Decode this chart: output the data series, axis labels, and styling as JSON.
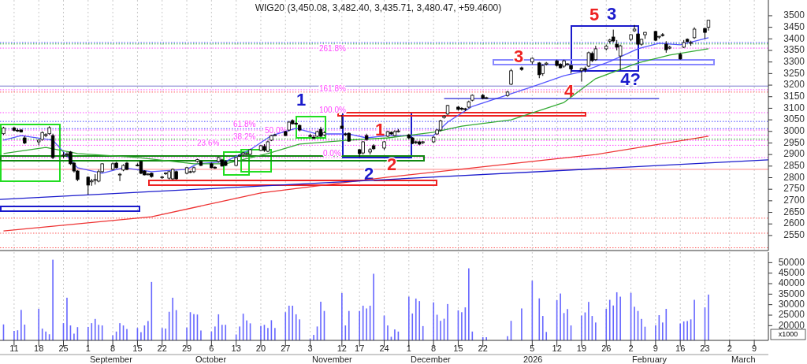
{
  "chart_data": [
    {
      "type": "candlestick",
      "title": "WIG20 (3,450.08, 3,482.40, 3,435.71, 3,480.47, +59.4600)",
      "color": "#000000",
      "x": [
        "2025-08-08",
        "2025-08-11",
        "2025-08-12",
        "2025-08-13",
        "2025-08-14",
        "2025-08-18",
        "2025-08-19",
        "2025-08-20",
        "2025-08-21",
        "2025-08-22",
        "2025-08-25",
        "2025-08-26",
        "2025-08-27",
        "2025-08-28",
        "2025-08-29",
        "2025-09-01",
        "2025-09-02",
        "2025-09-03",
        "2025-09-04",
        "2025-09-05",
        "2025-09-08",
        "2025-09-09",
        "2025-09-10",
        "2025-09-11",
        "2025-09-12",
        "2025-09-15",
        "2025-09-16",
        "2025-09-17",
        "2025-09-18",
        "2025-09-19",
        "2025-09-22",
        "2025-09-23",
        "2025-09-24",
        "2025-09-25",
        "2025-09-26",
        "2025-09-29",
        "2025-09-30",
        "2025-10-01",
        "2025-10-02",
        "2025-10-03",
        "2025-10-06",
        "2025-10-07",
        "2025-10-08",
        "2025-10-09",
        "2025-10-10",
        "2025-10-13",
        "2025-10-14",
        "2025-10-15",
        "2025-10-16",
        "2025-10-17",
        "2025-10-20",
        "2025-10-21",
        "2025-10-22",
        "2025-10-23",
        "2025-10-24",
        "2025-10-27",
        "2025-10-28",
        "2025-10-29",
        "2025-10-30",
        "2025-10-31",
        "2025-11-03",
        "2025-11-04",
        "2025-11-05",
        "2025-11-06",
        "2025-11-07",
        "2025-11-12",
        "2025-11-13",
        "2025-11-14",
        "2025-11-17",
        "2025-11-18",
        "2025-11-19",
        "2025-11-20",
        "2025-11-21",
        "2025-11-24",
        "2025-11-25",
        "2025-11-26",
        "2025-11-27",
        "2025-11-28",
        "2025-12-01",
        "2025-12-02",
        "2025-12-03",
        "2025-12-04",
        "2025-12-05",
        "2025-12-08",
        "2025-12-09",
        "2025-12-10",
        "2025-12-11",
        "2025-12-12",
        "2025-12-15",
        "2025-12-16",
        "2025-12-17",
        "2025-12-18",
        "2025-12-19",
        "2025-12-22",
        "2025-12-23",
        "2025-12-29",
        "2025-12-30",
        "2026-01-02",
        "2026-01-05",
        "2026-01-07",
        "2026-01-08",
        "2026-01-09",
        "2026-01-12",
        "2026-01-13",
        "2026-01-14",
        "2026-01-15",
        "2026-01-16",
        "2026-01-19",
        "2026-01-20",
        "2026-01-21",
        "2026-01-22",
        "2026-01-23",
        "2026-01-26",
        "2026-01-27",
        "2026-01-28",
        "2026-01-29",
        "2026-01-30",
        "2026-02-02",
        "2026-02-03",
        "2026-02-04",
        "2026-02-05",
        "2026-02-06",
        "2026-02-09",
        "2026-02-10",
        "2026-02-11",
        "2026-02-12",
        "2026-02-13",
        "2026-02-16",
        "2026-02-17",
        "2026-02-18",
        "2026-02-19",
        "2026-02-20",
        "2026-02-23",
        "2026-02-24"
      ],
      "ohlc": [
        [
          2990,
          3020,
          2985,
          3015
        ],
        [
          3015,
          3020,
          3000,
          3005
        ],
        [
          3005,
          3012,
          2998,
          3004
        ],
        [
          3006,
          3010,
          2995,
          2998
        ],
        [
          2972,
          2980,
          2945,
          2950
        ],
        [
          2955,
          2965,
          2940,
          2962
        ],
        [
          2965,
          3000,
          2960,
          2995
        ],
        [
          2985,
          2992,
          2975,
          2986
        ],
        [
          2990,
          3022,
          2985,
          3016
        ],
        [
          2982,
          2990,
          2880,
          2887
        ],
        [
          2895,
          2910,
          2885,
          2898
        ],
        [
          2900,
          2910,
          2890,
          2902
        ],
        [
          2911,
          2915,
          2855,
          2860
        ],
        [
          2863,
          2868,
          2822,
          2829
        ],
        [
          2829,
          2832,
          2785,
          2792
        ],
        [
          2802,
          2806,
          2727,
          2768
        ],
        [
          2782,
          2795,
          2765,
          2786
        ],
        [
          2790,
          2815,
          2770,
          2792
        ],
        [
          2785,
          2835,
          2780,
          2826
        ],
        [
          2826,
          2862,
          2822,
          2860
        ],
        [
          2836,
          2865,
          2832,
          2860
        ],
        [
          2863,
          2868,
          2840,
          2843
        ],
        [
          2812,
          2820,
          2785,
          2815
        ],
        [
          2833,
          2858,
          2828,
          2853
        ],
        [
          2863,
          2868,
          2832,
          2836
        ],
        [
          2855,
          2862,
          2850,
          2853
        ],
        [
          2870,
          2874,
          2815,
          2819
        ],
        [
          2829,
          2832,
          2810,
          2812
        ],
        [
          2815,
          2820,
          2810,
          2816
        ],
        [
          2819,
          2822,
          2800,
          2805
        ],
        [
          2802,
          2808,
          2795,
          2803
        ],
        [
          2818,
          2823,
          2812,
          2820
        ],
        [
          2798,
          2830,
          2792,
          2826
        ],
        [
          2795,
          2840,
          2790,
          2836
        ],
        [
          2826,
          2830,
          2792,
          2795
        ],
        [
          2819,
          2846,
          2815,
          2843
        ],
        [
          2824,
          2830,
          2820,
          2826
        ],
        [
          2826,
          2848,
          2820,
          2843
        ],
        [
          2870,
          2882,
          2865,
          2878
        ],
        [
          2870,
          2875,
          2850,
          2853
        ],
        [
          2860,
          2865,
          2840,
          2843
        ],
        [
          2845,
          2850,
          2838,
          2843
        ],
        [
          2870,
          2890,
          2865,
          2887
        ],
        [
          2877,
          2882,
          2848,
          2850
        ],
        [
          2870,
          2874,
          2850,
          2853
        ],
        [
          2853,
          2890,
          2850,
          2887
        ],
        [
          2895,
          2900,
          2890,
          2897
        ],
        [
          2900,
          2910,
          2895,
          2907
        ],
        [
          2902,
          2908,
          2898,
          2904
        ],
        [
          2901,
          2925,
          2898,
          2921
        ],
        [
          2918,
          2942,
          2915,
          2938
        ],
        [
          2935,
          2945,
          2912,
          2918
        ],
        [
          2914,
          2960,
          2910,
          2955
        ],
        [
          2962,
          2985,
          2958,
          2982
        ],
        [
          2984,
          2990,
          2980,
          2985
        ],
        [
          2999,
          3003,
          2980,
          2982
        ],
        [
          3006,
          3045,
          3000,
          3040
        ],
        [
          3047,
          3052,
          3030,
          3033
        ],
        [
          3035,
          3040,
          3028,
          3033
        ],
        [
          3026,
          3030,
          3000,
          3006
        ],
        [
          2982,
          2990,
          2975,
          2979
        ],
        [
          2975,
          2985,
          2965,
          2972
        ],
        [
          2979,
          3003,
          2975,
          2999
        ],
        [
          3009,
          3020,
          2975,
          2979
        ],
        [
          2985,
          3000,
          2980,
          2995
        ],
        [
          3023,
          3071,
          3010,
          3013
        ],
        [
          2989,
          2995,
          2980,
          2988
        ],
        [
          2992,
          2996,
          2955,
          2958
        ],
        [
          2921,
          2925,
          2890,
          2904
        ],
        [
          2907,
          2958,
          2900,
          2955
        ],
        [
          2982,
          2990,
          2960,
          2965
        ],
        [
          2911,
          2928,
          2900,
          2921
        ],
        [
          2938,
          2945,
          2920,
          2925
        ],
        [
          2928,
          2958,
          2920,
          2955
        ],
        [
          2979,
          3003,
          2975,
          2999
        ],
        [
          2996,
          3000,
          2985,
          2989
        ],
        [
          2982,
          3005,
          2978,
          2999
        ],
        [
          3000,
          3010,
          2995,
          3002
        ],
        [
          2985,
          2990,
          2965,
          2972
        ],
        [
          2972,
          2975,
          2945,
          2948
        ],
        [
          2955,
          2960,
          2945,
          2952
        ],
        [
          2955,
          2960,
          2940,
          2945
        ],
        [
          2952,
          2958,
          2945,
          2955
        ],
        [
          2955,
          2980,
          2950,
          2975
        ],
        [
          2989,
          3010,
          2985,
          3006
        ],
        [
          3006,
          3050,
          3000,
          3045
        ],
        [
          3060,
          3070,
          3055,
          3065
        ],
        [
          3075,
          3115,
          3070,
          3112
        ],
        [
          3105,
          3110,
          3090,
          3095
        ],
        [
          3100,
          3105,
          3090,
          3098
        ],
        [
          3098,
          3102,
          3088,
          3096
        ],
        [
          3105,
          3133,
          3100,
          3128
        ],
        [
          3135,
          3160,
          3130,
          3156
        ],
        [
          3156,
          3162,
          3140,
          3143
        ],
        [
          3145,
          3150,
          3140,
          3146
        ],
        [
          3155,
          3175,
          3150,
          3170
        ],
        [
          3204,
          3270,
          3200,
          3262
        ],
        [
          3275,
          3280,
          3262,
          3268
        ],
        [
          3300,
          3320,
          3290,
          3316
        ],
        [
          3296,
          3300,
          3230,
          3245
        ],
        [
          3250,
          3290,
          3240,
          3285
        ],
        [
          3290,
          3300,
          3285,
          3295
        ],
        [
          3305,
          3310,
          3280,
          3285
        ],
        [
          3290,
          3295,
          3272,
          3275
        ],
        [
          3282,
          3310,
          3275,
          3305
        ],
        [
          3290,
          3295,
          3285,
          3292
        ],
        [
          3285,
          3290,
          3250,
          3270
        ],
        [
          3262,
          3275,
          3215,
          3272
        ],
        [
          3272,
          3280,
          3255,
          3265
        ],
        [
          3282,
          3345,
          3278,
          3340
        ],
        [
          3337,
          3345,
          3300,
          3306
        ],
        [
          3310,
          3370,
          3305,
          3357
        ],
        [
          3357,
          3375,
          3350,
          3368
        ],
        [
          3390,
          3400,
          3380,
          3395
        ],
        [
          3408,
          3440,
          3385,
          3391
        ],
        [
          3377,
          3395,
          3350,
          3364
        ],
        [
          3326,
          3375,
          3265,
          3370
        ],
        [
          3398,
          3420,
          3390,
          3418
        ],
        [
          3435,
          3460,
          3430,
          3442
        ],
        [
          3421,
          3425,
          3370,
          3377
        ],
        [
          3377,
          3400,
          3370,
          3398
        ],
        [
          3418,
          3430,
          3400,
          3428
        ],
        [
          3432,
          3435,
          3390,
          3394
        ],
        [
          3408,
          3412,
          3400,
          3411
        ],
        [
          3418,
          3425,
          3410,
          3415
        ],
        [
          3377,
          3390,
          3340,
          3353
        ],
        [
          3360,
          3370,
          3355,
          3364
        ],
        [
          3333,
          3340,
          3310,
          3313
        ],
        [
          3364,
          3395,
          3360,
          3384
        ],
        [
          3398,
          3402,
          3385,
          3388
        ],
        [
          3381,
          3392,
          3370,
          3384
        ],
        [
          3405,
          3450,
          3400,
          3442
        ],
        [
          3445,
          3448,
          3400,
          3428
        ],
        [
          3450.08,
          3482.4,
          3435.71,
          3480.47
        ]
      ],
      "series": [
        {
          "type": "line",
          "color": "#5555ff",
          "x": [
            "2025-08-08",
            "2025-08-13",
            "2025-08-22",
            "2025-08-29",
            "2025-09-05",
            "2025-09-11",
            "2025-09-19",
            "2025-09-29",
            "2025-10-02",
            "2025-10-10",
            "2025-10-17",
            "2025-10-23",
            "2025-10-30",
            "2025-11-05",
            "2025-11-14",
            "2025-11-19",
            "2025-11-25",
            "2025-12-08",
            "2025-12-12",
            "2025-12-19",
            "2026-01-05",
            "2026-01-14",
            "2026-01-19",
            "2026-01-27",
            "2026-02-04",
            "2026-02-10",
            "2026-02-16",
            "2026-02-24"
          ],
          "values": [
            2962,
            2982,
            2962,
            2843,
            2819,
            2843,
            2826,
            2836,
            2860,
            2870,
            2921,
            2982,
            3013,
            2989,
            2989,
            2972,
            2982,
            2982,
            3040,
            3108,
            3193,
            3241,
            3258,
            3302,
            3357,
            3381,
            3374,
            3405
          ]
        },
        {
          "type": "line",
          "color": "#33aa33",
          "x": [
            "2025-08-08",
            "2025-08-20",
            "2025-08-29",
            "2025-09-15",
            "2025-10-01",
            "2025-10-10",
            "2025-10-22",
            "2025-10-31",
            "2025-11-14",
            "2025-11-25",
            "2025-12-08",
            "2025-12-16",
            "2025-12-30",
            "2026-01-14",
            "2026-01-23",
            "2026-02-04",
            "2026-02-13",
            "2026-02-24"
          ],
          "values": [
            2904,
            2931,
            2904,
            2887,
            2860,
            2860,
            2904,
            2945,
            2962,
            2972,
            2996,
            3023,
            3050,
            3125,
            3228,
            3296,
            3330,
            3357
          ]
        },
        {
          "type": "line",
          "color": "#ee3333",
          "x": [
            "2025-08-08",
            "2025-09-19",
            "2025-10-20",
            "2025-11-25",
            "2026-01-05",
            "2026-01-23",
            "2026-02-24"
          ],
          "values": [
            2570,
            2631,
            2734,
            2802,
            2870,
            2900,
            2979
          ]
        },
        {
          "type": "line",
          "color": "#1a1acc",
          "x": [
            "2025-08-07",
            "2026-03-13"
          ],
          "values": [
            2706,
            2877
          ]
        },
        {
          "type": "line",
          "color": "#2a2ad6",
          "x": [
            "2025-12-11",
            "2026-02-10"
          ],
          "values": [
            3142,
            3142
          ]
        }
      ],
      "xlim": [
        "2025-08-07",
        "2026-03-13"
      ],
      "xticks": [
        {
          "value": "2025-08-11",
          "label": null
        },
        {
          "value": "2025-08-18",
          "label": null
        },
        {
          "value": "2025-08-25",
          "label": null
        },
        {
          "value": "2025-09-01",
          "label": null
        },
        {
          "value": "2025-09-08",
          "label": null
        },
        {
          "value": "2025-09-15",
          "label": null
        },
        {
          "value": "2025-09-22",
          "label": null
        },
        {
          "value": "2025-09-29",
          "label": null
        },
        {
          "value": "2025-10-06",
          "label": null
        },
        {
          "value": "2025-10-13",
          "label": null
        },
        {
          "value": "2025-10-20",
          "label": null
        },
        {
          "value": "2025-10-27",
          "label": null
        },
        {
          "value": "2025-11-03",
          "label": null
        },
        {
          "value": "2025-11-12",
          "label": null
        },
        {
          "value": "2025-11-17",
          "label": null
        },
        {
          "value": "2025-11-24",
          "label": null
        },
        {
          "value": "2025-12-01",
          "label": null
        },
        {
          "value": "2025-12-08",
          "label": null
        },
        {
          "value": "2025-12-15",
          "label": null
        },
        {
          "value": "2025-12-22",
          "label": null
        },
        {
          "value": "2026-01-05",
          "label": null
        },
        {
          "value": "2026-01-12",
          "label": null
        },
        {
          "value": "2026-01-19",
          "label": null
        },
        {
          "value": "2026-01-26",
          "label": null
        },
        {
          "value": "2026-02-02",
          "label": null
        },
        {
          "value": "2026-02-09",
          "label": null
        },
        {
          "value": "2026-02-16",
          "label": null
        },
        {
          "value": "2026-02-23",
          "label": null
        },
        {
          "value": "2026-03-02",
          "label": null
        },
        {
          "value": "2026-03-09",
          "label": null
        }
      ],
      "ylim": [
        2485,
        3568
      ],
      "yticks": [
        2550,
        2600,
        2650,
        2700,
        2750,
        2800,
        2850,
        2900,
        2950,
        3000,
        3050,
        3100,
        3150,
        3200,
        3250,
        3300,
        3350,
        3400,
        3450,
        3500
      ],
      "grid": "x",
      "tick_labels": "y",
      "ref_lines": [
        {
          "axis": "y",
          "value": 3384,
          "color": "#4444ff",
          "line_style": "dotted"
        },
        {
          "axis": "y",
          "value": 3378,
          "color": "#33bb33",
          "line_style": "dotted"
        },
        {
          "axis": "y",
          "value": 3360,
          "color": "#ff44ff",
          "line_style": "dotted"
        },
        {
          "axis": "y",
          "value": 3196,
          "color": "#7777cc",
          "line_style": "solid"
        },
        {
          "axis": "y",
          "value": 3180,
          "color": "#ff44ff",
          "line_style": "dotted"
        },
        {
          "axis": "y",
          "value": 3170,
          "color": "#ff5555",
          "line_style": "dotted"
        },
        {
          "axis": "y",
          "value": 3081,
          "color": "#ff44ff",
          "line_style": "dotted"
        },
        {
          "axis": "y",
          "value": 3043,
          "color": "#4444ff",
          "line_style": "dotted"
        },
        {
          "axis": "y",
          "value": 3012,
          "color": "#4444ff",
          "line_style": "dotted"
        },
        {
          "axis": "y",
          "value": 3006,
          "color": "#ff44ff",
          "line_style": "dotted"
        },
        {
          "axis": "y",
          "value": 2984,
          "color": "#ff44ff",
          "line_style": "dotted"
        },
        {
          "axis": "y",
          "value": 2967,
          "color": "#33bb33",
          "line_style": "dotted"
        },
        {
          "axis": "y",
          "value": 2961,
          "color": "#ff44ff",
          "line_style": "dotted"
        },
        {
          "axis": "y",
          "value": 2940,
          "color": "#ff44ff",
          "line_style": "dotted"
        },
        {
          "axis": "y",
          "value": 2887,
          "color": "#ff44ff",
          "line_style": "dotted"
        },
        {
          "axis": "y",
          "value": 2836,
          "color": "#ff8888",
          "line_style": "solid"
        },
        {
          "axis": "y",
          "value": 2625,
          "color": "#ff5555",
          "line_style": "dotted"
        },
        {
          "axis": "y",
          "value": 2560,
          "color": "#ff5555",
          "line_style": "dotted"
        },
        {
          "axis": "y",
          "value": 2497,
          "color": "#ff5555",
          "line_style": "dotted"
        }
      ],
      "annotations": [
        "261.8%",
        "161.8%",
        "100.0%",
        "61.8%",
        "50.0%",
        "38.2%",
        "23.6%",
        "0.0%",
        "1",
        "2",
        "3",
        "4?",
        "1",
        "2",
        "3",
        "4",
        "5"
      ]
    },
    {
      "type": "bar",
      "color": "#6666ff",
      "ylabel": "x1000",
      "x": [
        "2025-08-08",
        "2025-08-11",
        "2025-08-12",
        "2025-08-13",
        "2025-08-14",
        "2025-08-18",
        "2025-08-19",
        "2025-08-20",
        "2025-08-21",
        "2025-08-22",
        "2025-08-25",
        "2025-08-26",
        "2025-08-27",
        "2025-08-28",
        "2025-08-29",
        "2025-09-01",
        "2025-09-02",
        "2025-09-03",
        "2025-09-04",
        "2025-09-05",
        "2025-09-08",
        "2025-09-09",
        "2025-09-10",
        "2025-09-11",
        "2025-09-12",
        "2025-09-15",
        "2025-09-16",
        "2025-09-17",
        "2025-09-18",
        "2025-09-19",
        "2025-09-22",
        "2025-09-23",
        "2025-09-24",
        "2025-09-25",
        "2025-09-26",
        "2025-09-29",
        "2025-09-30",
        "2025-10-01",
        "2025-10-02",
        "2025-10-03",
        "2025-10-06",
        "2025-10-07",
        "2025-10-08",
        "2025-10-09",
        "2025-10-10",
        "2025-10-13",
        "2025-10-14",
        "2025-10-15",
        "2025-10-16",
        "2025-10-17",
        "2025-10-20",
        "2025-10-21",
        "2025-10-22",
        "2025-10-23",
        "2025-10-24",
        "2025-10-27",
        "2025-10-28",
        "2025-10-29",
        "2025-10-30",
        "2025-10-31",
        "2025-11-03",
        "2025-11-04",
        "2025-11-05",
        "2025-11-06",
        "2025-11-07",
        "2025-11-12",
        "2025-11-13",
        "2025-11-14",
        "2025-11-17",
        "2025-11-18",
        "2025-11-19",
        "2025-11-20",
        "2025-11-21",
        "2025-11-24",
        "2025-11-25",
        "2025-11-26",
        "2025-11-27",
        "2025-11-28",
        "2025-12-01",
        "2025-12-02",
        "2025-12-03",
        "2025-12-04",
        "2025-12-05",
        "2025-12-08",
        "2025-12-09",
        "2025-12-10",
        "2025-12-11",
        "2025-12-12",
        "2025-12-15",
        "2025-12-16",
        "2025-12-17",
        "2025-12-18",
        "2025-12-19",
        "2025-12-22",
        "2025-12-23",
        "2025-12-29",
        "2025-12-30",
        "2026-01-02",
        "2026-01-05",
        "2026-01-07",
        "2026-01-08",
        "2026-01-09",
        "2026-01-12",
        "2026-01-13",
        "2026-01-14",
        "2026-01-15",
        "2026-01-16",
        "2026-01-19",
        "2026-01-20",
        "2026-01-21",
        "2026-01-22",
        "2026-01-23",
        "2026-01-26",
        "2026-01-27",
        "2026-01-28",
        "2026-01-29",
        "2026-01-30",
        "2026-02-02",
        "2026-02-03",
        "2026-02-04",
        "2026-02-05",
        "2026-02-06",
        "2026-02-09",
        "2026-02-10",
        "2026-02-11",
        "2026-02-12",
        "2026-02-13",
        "2026-02-16",
        "2026-02-17",
        "2026-02-18",
        "2026-02-19",
        "2026-02-20",
        "2026-02-23",
        "2026-02-24"
      ],
      "values": [
        20600,
        17500,
        17800,
        27500,
        20500,
        28000,
        18600,
        17200,
        15900,
        51400,
        21200,
        33300,
        20100,
        16200,
        19300,
        19400,
        21200,
        23200,
        20400,
        20100,
        15400,
        17200,
        21200,
        20100,
        18400,
        18900,
        16900,
        20100,
        22200,
        40800,
        18900,
        18600,
        26600,
        33300,
        27400,
        19100,
        26400,
        25500,
        25300,
        17700,
        17200,
        19600,
        25400,
        20400,
        20400,
        15800,
        19600,
        25700,
        22500,
        21100,
        19900,
        20400,
        18900,
        22600,
        18900,
        26400,
        29500,
        29500,
        25400,
        23000,
        13900,
        15600,
        19600,
        31400,
        27000,
        35500,
        20100,
        27000,
        27000,
        29500,
        28200,
        29500,
        44700,
        24800,
        20100,
        14700,
        18200,
        17200,
        33800,
        25800,
        32900,
        31700,
        19800,
        31100,
        25200,
        22300,
        23300,
        30300,
        27300,
        26400,
        28700,
        47300,
        17200,
        14500,
        14500,
        15000,
        22300,
        28200,
        41400,
        33000,
        24600,
        17000,
        32100,
        35300,
        26000,
        27900,
        20100,
        24800,
        26300,
        31300,
        24600,
        21500,
        28000,
        32300,
        29600,
        35900,
        33800,
        35600,
        29000,
        27000,
        23200,
        19500,
        20200,
        25000,
        21500,
        28000,
        null,
        21000,
        22000,
        22200,
        23000,
        32300,
        28700,
        34800
      ],
      "xlim": [
        "2025-08-07",
        "2026-03-13"
      ],
      "xticks": [
        {
          "value": "2025-08-11",
          "label": "11"
        },
        {
          "value": "2025-08-18",
          "label": "18"
        },
        {
          "value": "2025-08-25",
          "label": "25"
        },
        {
          "value": "2025-09-01",
          "label": "1"
        },
        {
          "value": "2025-09-08",
          "label": "8"
        },
        {
          "value": "2025-09-15",
          "label": "15"
        },
        {
          "value": "2025-09-22",
          "label": "22"
        },
        {
          "value": "2025-09-29",
          "label": "29"
        },
        {
          "value": "2025-10-06",
          "label": "6"
        },
        {
          "value": "2025-10-13",
          "label": "13"
        },
        {
          "value": "2025-10-20",
          "label": "20"
        },
        {
          "value": "2025-10-27",
          "label": "27"
        },
        {
          "value": "2025-11-03",
          "label": "3"
        },
        {
          "value": "2025-11-12",
          "label": "12"
        },
        {
          "value": "2025-11-17",
          "label": "17"
        },
        {
          "value": "2025-11-24",
          "label": "24"
        },
        {
          "value": "2025-12-01",
          "label": "1"
        },
        {
          "value": "2025-12-08",
          "label": "8"
        },
        {
          "value": "2025-12-15",
          "label": "15"
        },
        {
          "value": "2025-12-22",
          "label": "22"
        },
        {
          "value": "2026-01-05",
          "label": "5"
        },
        {
          "value": "2026-01-12",
          "label": "12"
        },
        {
          "value": "2026-01-19",
          "label": "19"
        },
        {
          "value": "2026-01-26",
          "label": "26"
        },
        {
          "value": "2026-02-02",
          "label": "2"
        },
        {
          "value": "2026-02-09",
          "label": "9"
        },
        {
          "value": "2026-02-16",
          "label": "16"
        },
        {
          "value": "2026-02-23",
          "label": "23"
        },
        {
          "value": "2026-03-02",
          "label": "2"
        },
        {
          "value": "2026-03-09",
          "label": "9"
        }
      ],
      "ylim": [
        13000,
        55000
      ],
      "yticks": [
        20000,
        25000,
        30000,
        35000,
        40000,
        45000,
        50000
      ],
      "grid": "x",
      "annotations": [
        "September",
        "October",
        "November",
        "December",
        "2026",
        "February",
        "March"
      ]
    }
  ]
}
